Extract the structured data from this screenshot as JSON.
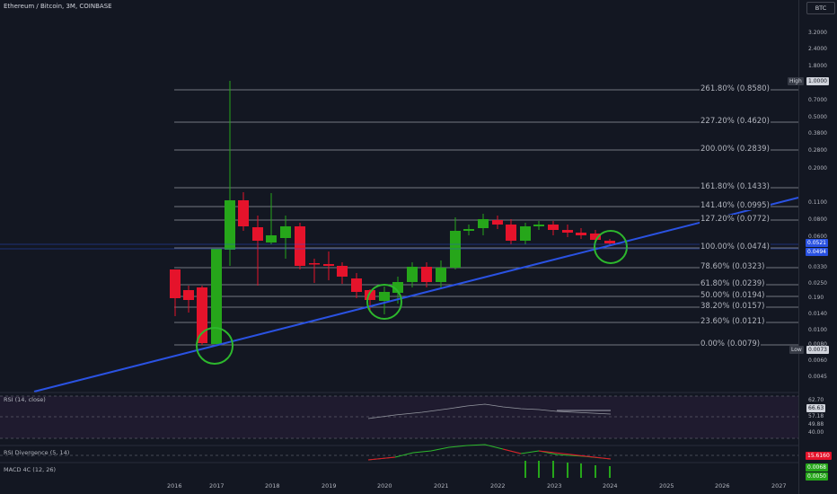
{
  "title": "Ethereum / Bitcoin, 3M, COINBASE",
  "currency_button": "BTC",
  "colors": {
    "up": "#26a61a",
    "down": "#e5132b",
    "trendline": "#2a52e2",
    "circle": "#2db82d",
    "background": "#131722",
    "rsi_band": "#b04dd2"
  },
  "price_ticks": [
    "3.2000",
    "2.4000",
    "1.8000",
    "1.3000",
    "0.7000",
    "0.5000",
    "0.3800",
    "0.2800",
    "0.2000",
    "0.1100",
    "0.0800",
    "0.0600",
    "0.0330",
    "0.0250",
    "0.190",
    "0.0140",
    "0.0100",
    "0.0080",
    "0.0060",
    "0.0045"
  ],
  "high_tag": {
    "label": "High",
    "value": "1.0000"
  },
  "low_tag": {
    "label": "Low",
    "value": "0.0073"
  },
  "price_badges": [
    "0.0521",
    "0.0494"
  ],
  "fib_levels": [
    "261.80% (0.8580)",
    "227.20% (0.4620)",
    "200.00% (0.2839)",
    "161.80% (0.1433)",
    "141.40% (0.0995)",
    "127.20% (0.0772)",
    "100.00% (0.0474)",
    "78.60% (0.0323)",
    "61.80% (0.0239)",
    "50.00% (0.0194)",
    "38.20% (0.0157)",
    "23.60% (0.0121)",
    "0.00% (0.0079)"
  ],
  "rsi": {
    "label": "RSI (14, close)",
    "values": [
      "62.70",
      "66.63",
      "57.18",
      "49.88",
      "40.00"
    ]
  },
  "rsi_div": {
    "label": "RSI Divergence (5, 14)",
    "value": "15.6160"
  },
  "macd": {
    "label": "MACD 4C (12, 26)",
    "values": [
      "0.0068",
      "0.0050"
    ]
  },
  "x_ticks": [
    "2016",
    "2017",
    "2018",
    "2019",
    "2020",
    "2021",
    "2022",
    "2023",
    "2024",
    "2025",
    "2026",
    "2027"
  ]
}
